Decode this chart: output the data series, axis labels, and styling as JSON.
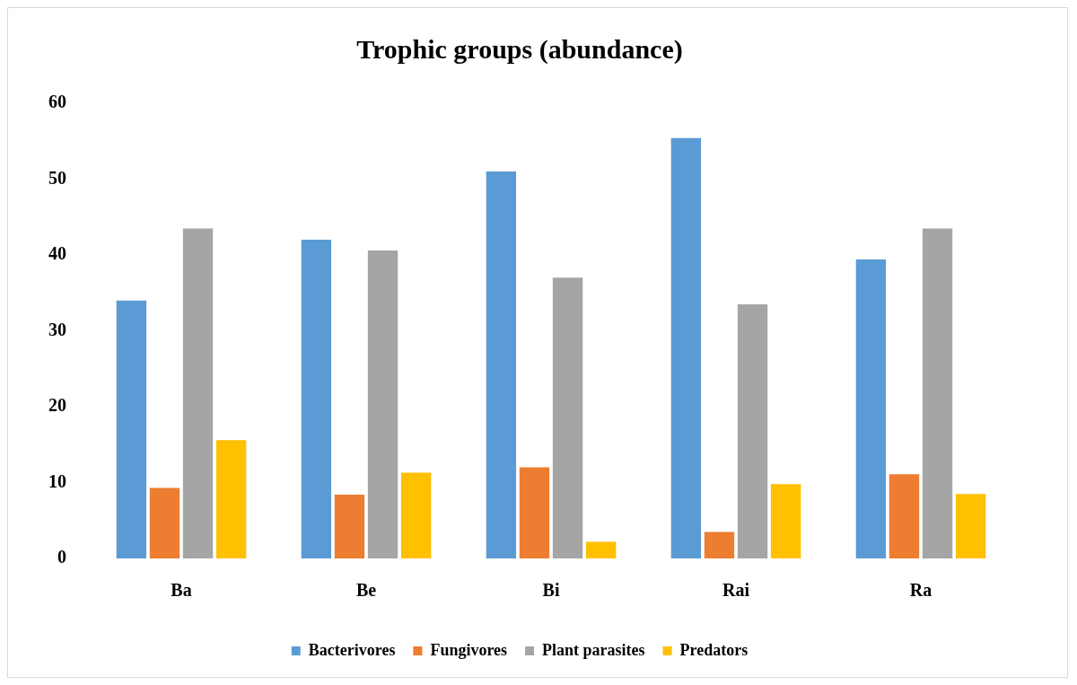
{
  "chart_data": {
    "type": "bar",
    "title": "Trophic groups (abundance)",
    "categories": [
      "Ba",
      "Be",
      "Bi",
      "Rai",
      "Ra"
    ],
    "series": [
      {
        "name": "Bacterivores",
        "color": "#5b9bd5",
        "values": [
          34,
          42,
          51,
          55.4,
          39.4
        ]
      },
      {
        "name": "Fungivores",
        "color": "#ed7d31",
        "values": [
          9.3,
          8.4,
          12,
          3.5,
          11.1
        ]
      },
      {
        "name": "Plant parasites",
        "color": "#a5a5a5",
        "values": [
          43.5,
          40.6,
          37,
          33.5,
          43.5
        ]
      },
      {
        "name": "Predators",
        "color": "#ffc000",
        "values": [
          15.6,
          11.3,
          2.2,
          9.8,
          8.5
        ]
      }
    ],
    "ylim": [
      0,
      60
    ],
    "yticks": [
      0,
      10,
      20,
      30,
      40,
      50,
      60
    ],
    "grid": false,
    "legend": "bottom"
  }
}
